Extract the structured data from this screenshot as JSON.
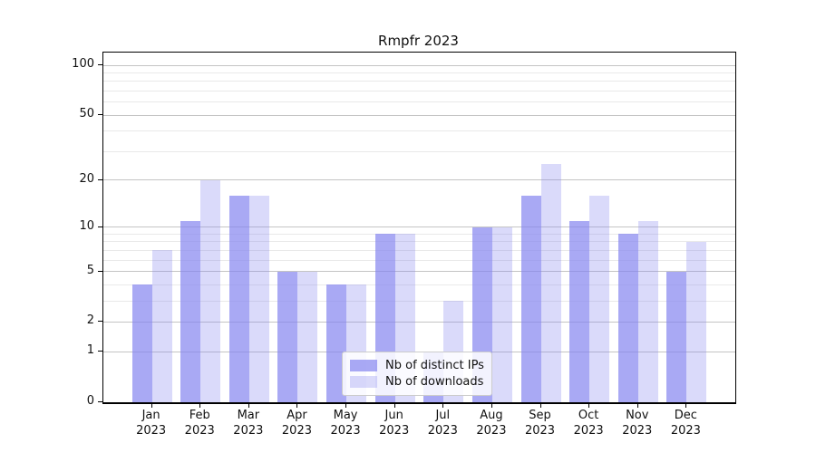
{
  "title": "Rmpfr 2023",
  "colors": {
    "bar_base": "#8585f0",
    "grid_major": "#c4c4c4",
    "grid_minor": "#e9e9e9",
    "axis": "#000000",
    "text": "#111111"
  },
  "legend": {
    "entries": [
      {
        "label": "Nb of distinct IPs"
      },
      {
        "label": "Nb of downloads"
      }
    ]
  },
  "chart_data": {
    "type": "bar",
    "title": "Rmpfr 2023",
    "xlabel": "",
    "ylabel": "",
    "scale": "log1p",
    "grid": true,
    "legend_position": "lower center",
    "year": "2023",
    "categories": [
      "Jan",
      "Feb",
      "Mar",
      "Apr",
      "May",
      "Jun",
      "Jul",
      "Aug",
      "Sep",
      "Oct",
      "Nov",
      "Dec"
    ],
    "series": [
      {
        "name": "Nb of distinct IPs",
        "color": "#8585f0",
        "opacity": 0.7,
        "values": [
          4,
          11,
          16,
          5,
          4,
          9,
          1,
          10,
          16,
          11,
          9,
          5
        ]
      },
      {
        "name": "Nb of downloads",
        "color": "#8585f0",
        "opacity": 0.3,
        "values": [
          7,
          20,
          16,
          5,
          4,
          9,
          3,
          10,
          25,
          16,
          11,
          8
        ]
      }
    ],
    "y_major_ticks": [
      0,
      1,
      2,
      5,
      10,
      20,
      50,
      100
    ],
    "y_minor_ticks": [
      3,
      4,
      6,
      7,
      8,
      9,
      30,
      40,
      60,
      70,
      80,
      90
    ],
    "ylim": [
      0,
      120
    ]
  }
}
